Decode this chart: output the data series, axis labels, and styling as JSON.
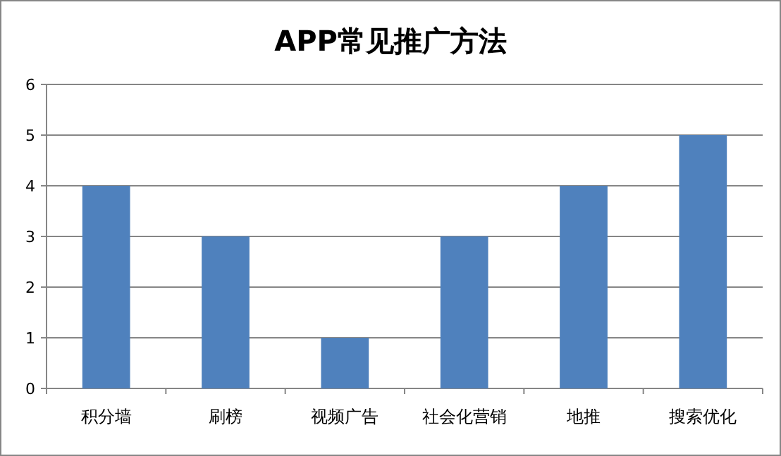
{
  "chart_data": {
    "type": "bar",
    "title": "APP常见推广方法",
    "categories": [
      "积分墙",
      "刷榜",
      "视频广告",
      "社会化营销",
      "地推",
      "搜索优化"
    ],
    "values": [
      4,
      3,
      1,
      3,
      4,
      5
    ],
    "color": "#4f81bd",
    "ylim": [
      0,
      6
    ],
    "yticks": [
      0,
      1,
      2,
      3,
      4,
      5,
      6
    ],
    "grid": "y"
  }
}
